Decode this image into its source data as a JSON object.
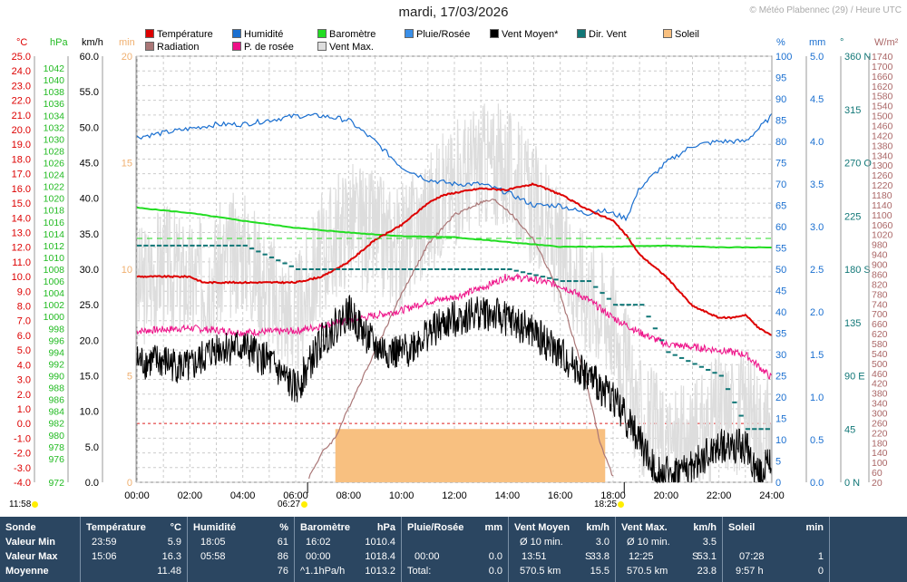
{
  "title": "mardi, 17/03/2026",
  "copyright": "© Météo Plabennec (29) / Heure UTC",
  "legend": [
    {
      "label": "Température",
      "color": "#dd0000"
    },
    {
      "label": "Humidité",
      "color": "#1a6fd0"
    },
    {
      "label": "Baromètre",
      "color": "#22dd22"
    },
    {
      "label": "Pluie/Rosée",
      "color": "#3a8fe8"
    },
    {
      "label": "Vent Moyen*",
      "color": "#000000"
    },
    {
      "label": "Dir. Vent",
      "color": "#117777"
    },
    {
      "label": "Soleil",
      "color": "#f8c080"
    },
    {
      "label": "Radiation",
      "color": "#aa7777"
    },
    {
      "label": "P. de rosée",
      "color": "#ee1188"
    },
    {
      "label": "Vent Max.",
      "color": "#dddddd"
    }
  ],
  "sunrise": {
    "label": "06:27",
    "moonrise": "11:58"
  },
  "sunset": {
    "label": "18:25"
  },
  "chart_data": {
    "type": "line",
    "x_unit": "hours UTC",
    "xlim": [
      0,
      24
    ],
    "x_ticks": [
      "00:00",
      "02:00",
      "04:00",
      "06:00",
      "08:00",
      "10:00",
      "12:00",
      "14:00",
      "16:00",
      "18:00",
      "20:00",
      "22:00",
      "24:00"
    ],
    "axes": {
      "temperature": {
        "unit": "°C",
        "range": [
          -4,
          25
        ],
        "ticks": [
          "25.0",
          "24.0",
          "23.0",
          "22.0",
          "21.0",
          "20.0",
          "19.0",
          "18.0",
          "17.0",
          "16.0",
          "15.0",
          "14.0",
          "13.0",
          "12.0",
          "11.0",
          "10.0",
          "9.0",
          "8.0",
          "7.0",
          "6.0",
          "5.0",
          "4.0",
          "3.0",
          "2.0",
          "1.0",
          "0.0",
          "-1.0",
          "-2.0",
          "-3.0",
          "-4.0"
        ],
        "color": "#dd0000"
      },
      "pressure": {
        "unit": "hPa",
        "range": [
          972,
          1044
        ],
        "ticks": [
          "1042",
          "1040",
          "1038",
          "1036",
          "1034",
          "1032",
          "1030",
          "1028",
          "1026",
          "1024",
          "1022",
          "1020",
          "1018",
          "1016",
          "1014",
          "1012",
          "1010",
          "1008",
          "1006",
          "1004",
          "1002",
          "1000",
          "998",
          "996",
          "994",
          "992",
          "990",
          "988",
          "986",
          "984",
          "982",
          "980",
          "978",
          "976",
          "972"
        ],
        "color": "#22bb22"
      },
      "wind": {
        "unit": "km/h",
        "range": [
          0,
          60
        ],
        "ticks": [
          "60.0",
          "55.0",
          "50.0",
          "45.0",
          "40.0",
          "35.0",
          "30.0",
          "25.0",
          "20.0",
          "15.0",
          "10.0",
          "5.0",
          "0.0"
        ],
        "color": "#000000"
      },
      "sun": {
        "unit": "min",
        "range": [
          0,
          20
        ],
        "ticks": [
          "20",
          "15",
          "10",
          "5",
          "0"
        ],
        "color": "#f0b070"
      },
      "humidity": {
        "unit": "%",
        "range": [
          0,
          100
        ],
        "ticks": [
          "100",
          "95",
          "90",
          "85",
          "80",
          "75",
          "70",
          "65",
          "60",
          "55",
          "50",
          "45",
          "40",
          "35",
          "30",
          "25",
          "20",
          "15",
          "10",
          "5",
          "0"
        ],
        "color": "#1a6fd0"
      },
      "rain": {
        "unit": "mm",
        "range": [
          0,
          5
        ],
        "ticks": [
          "5.0",
          "4.5",
          "4.0",
          "3.5",
          "3.0",
          "2.5",
          "2.0",
          "1.5",
          "1.0",
          "0.5",
          "0.0"
        ],
        "color": "#1a6fd0"
      },
      "direction": {
        "unit": "°",
        "range": [
          0,
          360
        ],
        "ticks": [
          "360 N",
          "315",
          "270 O",
          "225",
          "180 S",
          "135",
          "90 E",
          "45",
          "0 N"
        ],
        "color": "#117777"
      },
      "radiation": {
        "unit": "W/m²",
        "range": [
          20,
          1740
        ],
        "ticks": [
          "1740",
          "1700",
          "1660",
          "1620",
          "1580",
          "1540",
          "1500",
          "1460",
          "1420",
          "1380",
          "1340",
          "1300",
          "1260",
          "1220",
          "1180",
          "1140",
          "1100",
          "1060",
          "1020",
          "980",
          "940",
          "900",
          "860",
          "820",
          "780",
          "740",
          "700",
          "660",
          "620",
          "580",
          "540",
          "500",
          "460",
          "420",
          "380",
          "340",
          "300",
          "260",
          "220",
          "180",
          "140",
          "100",
          "60",
          "20"
        ],
        "color": "#aa6666"
      }
    },
    "series": [
      {
        "name": "Température",
        "axis": "temperature",
        "x": [
          0,
          1,
          2,
          2.5,
          3,
          4,
          5,
          6,
          7,
          8,
          9,
          10,
          11,
          11.5,
          12,
          13,
          14,
          15,
          16,
          17,
          18,
          18.5,
          19,
          20,
          21,
          22,
          22.5,
          23,
          23.5,
          24
        ],
        "values": [
          10.0,
          10.0,
          10.0,
          9.6,
          9.6,
          9.6,
          9.6,
          9.6,
          10.0,
          11.0,
          12.5,
          13.5,
          15.0,
          15.5,
          15.7,
          16.0,
          15.9,
          16.3,
          15.6,
          14.6,
          13.8,
          12.8,
          11.5,
          10.0,
          8.0,
          7.2,
          7.2,
          7.4,
          6.5,
          6.0
        ]
      },
      {
        "name": "Humidité",
        "axis": "humidity",
        "x": [
          0,
          1,
          2,
          3,
          4,
          5,
          6,
          7,
          8,
          9,
          10,
          11,
          12,
          13,
          13.5,
          14,
          15,
          16,
          17,
          17.5,
          18,
          18.5,
          19,
          20,
          21,
          22,
          23,
          24
        ],
        "values": [
          81,
          82,
          83,
          84,
          84,
          85,
          86,
          86,
          85,
          80,
          74,
          71,
          70,
          70,
          69,
          68,
          65,
          65,
          63,
          64,
          63,
          62,
          69,
          75,
          79,
          80,
          80,
          86
        ]
      },
      {
        "name": "Baromètre",
        "axis": "pressure",
        "x": [
          0,
          2,
          4,
          6,
          8,
          10,
          12,
          14,
          16,
          18,
          20,
          22,
          24
        ],
        "values": [
          1018.4,
          1017.5,
          1016.2,
          1015.0,
          1014.2,
          1013.6,
          1013.4,
          1012.6,
          1011.8,
          1011.8,
          1012.0,
          1011.7,
          1011.7
        ]
      },
      {
        "name": "P. de rosée",
        "axis": "temperature",
        "x": [
          0,
          2,
          4,
          6,
          8,
          10,
          11,
          12,
          13,
          14,
          15,
          16,
          17,
          18,
          19,
          20,
          21,
          22,
          23,
          24
        ],
        "values": [
          6.3,
          6.5,
          6.2,
          6.3,
          7.0,
          7.7,
          8.3,
          8.6,
          9.2,
          10.0,
          9.8,
          9.4,
          8.5,
          7.2,
          6.2,
          5.4,
          5.2,
          5.0,
          4.7,
          3.1
        ]
      },
      {
        "name": "Vent Moyen*",
        "axis": "wind",
        "x": [
          0,
          1,
          2,
          3,
          4,
          5,
          6,
          7,
          8,
          9,
          10,
          11,
          12,
          13,
          14,
          15,
          16,
          17,
          18,
          19,
          19.5,
          20,
          21,
          22,
          23,
          23.5,
          24
        ],
        "values": [
          17,
          17,
          16,
          19,
          19,
          17,
          13,
          20,
          24,
          19,
          18,
          21,
          23,
          24,
          23,
          21,
          18,
          15,
          12,
          6,
          2,
          1,
          2,
          5,
          5,
          1,
          3
        ]
      },
      {
        "name": "Vent Max.",
        "axis": "wind",
        "x": [
          0,
          1,
          2,
          3,
          4,
          5,
          6,
          7,
          8,
          9,
          10,
          11,
          12,
          13,
          14,
          15,
          16,
          17,
          18,
          19,
          20,
          21,
          22,
          23,
          24
        ],
        "values": [
          27,
          31,
          28,
          30,
          33,
          27,
          23,
          32,
          37,
          35,
          33,
          38,
          42,
          45,
          44,
          39,
          32,
          27,
          23,
          9,
          5,
          5,
          10,
          10,
          6
        ]
      },
      {
        "name": "Radiation",
        "axis": "radiation",
        "x": [
          6.5,
          7,
          7.5,
          8,
          9,
          10,
          11,
          12,
          13,
          13.5,
          14,
          15,
          16,
          17,
          17.5,
          18
        ],
        "values": [
          40,
          140,
          200,
          320,
          550,
          780,
          980,
          1100,
          1150,
          1160,
          1120,
          1000,
          780,
          420,
          180,
          40
        ]
      },
      {
        "name": "Dir. Vent",
        "axis": "direction",
        "x": [
          0,
          2,
          4,
          6,
          8,
          10,
          12,
          14,
          16,
          17,
          18,
          19,
          20,
          21,
          22,
          23,
          24
        ],
        "values": [
          200,
          200,
          200,
          180,
          180,
          180,
          180,
          180,
          170,
          170,
          150,
          150,
          110,
          100,
          90,
          45,
          45
        ]
      }
    ],
    "sunshine": {
      "from": 7.5,
      "to": 17.7,
      "level_min": 2.5
    },
    "stats": {
      "headers": [
        {
          "label": "Température",
          "unit": "°C"
        },
        {
          "label": "Humidité",
          "unit": "%"
        },
        {
          "label": "Baromètre",
          "unit": "hPa"
        },
        {
          "label": "Pluie/Rosée",
          "unit": "mm"
        },
        {
          "label": "Vent Moyen",
          "unit": "km/h"
        },
        {
          "label": "Vent Max.",
          "unit": "km/h"
        },
        {
          "label": "Soleil",
          "unit": "min"
        }
      ],
      "row_labels": [
        "Sonde",
        "Valeur Min",
        "Valeur Max",
        "Moyenne"
      ],
      "temperature": {
        "min_time": "23:59",
        "min": "5.9",
        "max_time": "15:06",
        "max": "16.3",
        "avg": "11.48"
      },
      "humidity": {
        "min_time": "18:05",
        "min": "61",
        "max_time": "05:58",
        "max": "86",
        "avg": "76"
      },
      "pressure": {
        "min_time": "16:02",
        "min": "1010.4",
        "max_time": "00:00",
        "max": "1018.4",
        "avg_label": "^1.1hPa/h",
        "avg": "1013.2"
      },
      "rain": {
        "max_time": "00:00",
        "max": "0.0",
        "avg_label": "Total:",
        "avg": "0.0"
      },
      "wind_avg": {
        "min_label": "Ø 10 min.",
        "min": "3.0",
        "max_time": "13:51",
        "max_dir": "S",
        "max": "33.8",
        "avg_label": "570.5 km",
        "avg": "15.5"
      },
      "wind_max": {
        "min_label": "Ø 10 min.",
        "min": "3.5",
        "max_time": "12:25",
        "max_dir": "S",
        "max": "53.1",
        "avg_label": "570.5 km",
        "avg": "23.8"
      },
      "sun": {
        "max_time": "07:28",
        "max": "1",
        "avg_label": "9:57 h",
        "avg": "0"
      }
    }
  }
}
